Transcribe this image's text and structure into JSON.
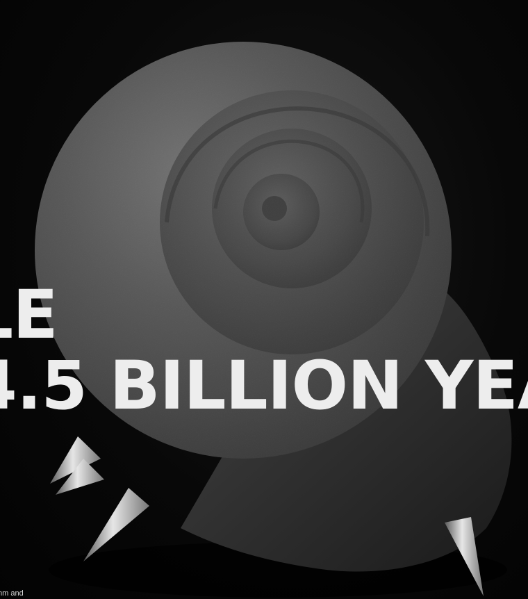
{
  "headline": {
    "line_1": "LE",
    "line_2": "4.5 BILLION YEA"
  },
  "footer": {
    "text": "mm and"
  },
  "colors": {
    "background": "#050505",
    "headline_text": "#ededed",
    "shell": "#3a3a3a",
    "spikes": "#c8c8c8"
  }
}
